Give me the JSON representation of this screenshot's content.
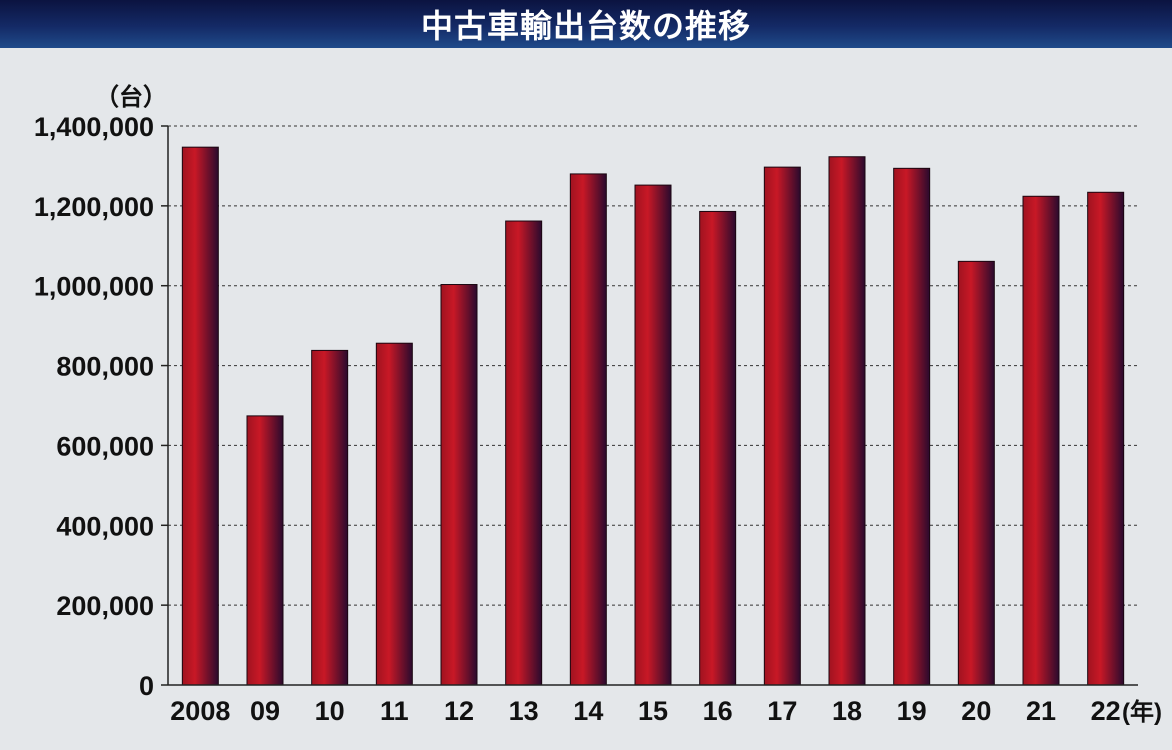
{
  "title": "中古車輸出台数の推移",
  "colors": {
    "title_bar": "#142a66",
    "background": "#e4e7ea",
    "bar_light": "#c81826",
    "bar_dark": "#2a0a2e"
  },
  "chart_data": {
    "type": "bar",
    "title": "中古車輸出台数の推移",
    "ylabel": "（台）",
    "xlabel": "(年)",
    "categories": [
      "2008",
      "09",
      "10",
      "11",
      "12",
      "13",
      "14",
      "15",
      "16",
      "17",
      "18",
      "19",
      "20",
      "21",
      "22"
    ],
    "values": [
      1347000,
      674000,
      838000,
      856000,
      1003000,
      1162000,
      1280000,
      1252000,
      1186000,
      1297000,
      1323000,
      1294000,
      1061000,
      1224000,
      1234000
    ],
    "ylim": [
      0,
      1400000
    ],
    "yticks": [
      "0",
      "200,000",
      "400,000",
      "600,000",
      "800,000",
      "1,000,000",
      "1,200,000",
      "1,400,000"
    ],
    "grid": true,
    "legend": "none"
  }
}
